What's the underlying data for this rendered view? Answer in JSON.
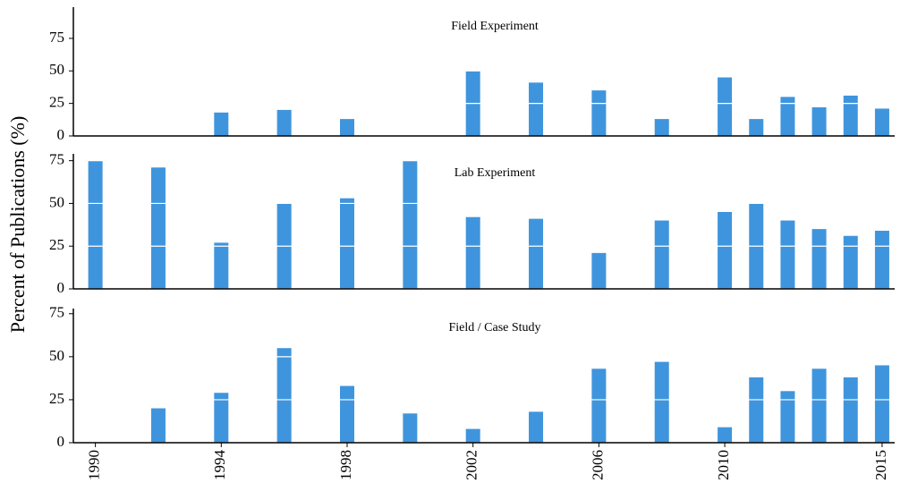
{
  "chart_data": [
    {
      "type": "bar",
      "title": "Field Experiment",
      "color": "#3f95dd",
      "x": [
        1990,
        1992,
        1994,
        1996,
        1998,
        2000,
        2002,
        2004,
        2006,
        2008,
        2010,
        2011,
        2012,
        2013,
        2014,
        2015
      ],
      "values": [
        0,
        0,
        18,
        20,
        13,
        0,
        50,
        41,
        35,
        13,
        45,
        13,
        30,
        22,
        31,
        21
      ],
      "xlim": [
        1989.3,
        2015.4
      ],
      "ylim": [
        0,
        99
      ],
      "yticks": [
        0,
        25,
        50,
        75
      ]
    },
    {
      "type": "bar",
      "title": "Lab Experiment",
      "color": "#3f95dd",
      "ylabel": "Percent of Publications (%)",
      "x": [
        1990,
        1992,
        1994,
        1996,
        1998,
        2000,
        2002,
        2004,
        2006,
        2008,
        2010,
        2011,
        2012,
        2013,
        2014,
        2015
      ],
      "values": [
        75,
        71,
        27,
        50,
        53,
        75,
        42,
        41,
        21,
        40,
        45,
        50,
        40,
        35,
        31,
        34
      ],
      "xlim": [
        1989.3,
        2015.4
      ],
      "ylim": [
        0,
        79
      ],
      "yticks": [
        0,
        25,
        50,
        75
      ]
    },
    {
      "type": "bar",
      "title": "Field / Case Study",
      "color": "#3f95dd",
      "x": [
        1990,
        1992,
        1994,
        1996,
        1998,
        2000,
        2002,
        2004,
        2006,
        2008,
        2010,
        2011,
        2012,
        2013,
        2014,
        2015
      ],
      "values": [
        0,
        20,
        29,
        55,
        33,
        17,
        8,
        18,
        43,
        47,
        9,
        38,
        30,
        43,
        38,
        45
      ],
      "xlim": [
        1989.3,
        2015.4
      ],
      "ylim": [
        0,
        78
      ],
      "yticks": [
        0,
        25,
        50,
        75
      ],
      "xticks": [
        1990,
        1994,
        1998,
        2002,
        2006,
        2010,
        2015
      ]
    }
  ]
}
